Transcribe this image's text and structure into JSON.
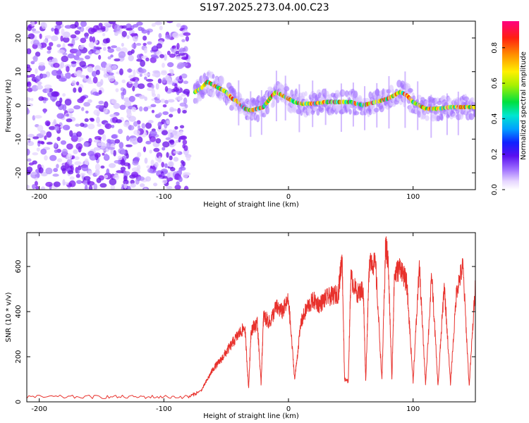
{
  "title": "S197.2025.273.04.00.C23",
  "colors": {
    "snr_line": "#e8312c",
    "frame": "#000000",
    "background": "#ffffff",
    "colormap": [
      "#ffffff",
      "#e6d6ff",
      "#a070ff",
      "#7a18f0",
      "#3018ff",
      "#00a0ff",
      "#00e6d0",
      "#00e040",
      "#a8f000",
      "#fff000",
      "#ff9000",
      "#ff2010",
      "#ff0080"
    ]
  },
  "chart_data": [
    {
      "type": "heatmap",
      "name": "spectrogram",
      "xlabel": "Height of straight line (km)",
      "ylabel": "Frequency (Hz)",
      "xlim": [
        -210,
        150
      ],
      "ylim": [
        -25,
        25
      ],
      "xticks": [
        -200,
        -100,
        0,
        100
      ],
      "yticks": [
        -20,
        -10,
        0,
        10,
        20
      ],
      "noise_region_x": [
        -210,
        -80
      ],
      "ridge": {
        "x": [
          -75,
          -70,
          -65,
          -60,
          -55,
          -50,
          -45,
          -40,
          -35,
          -30,
          -25,
          -20,
          -15,
          -10,
          -5,
          0,
          5,
          10,
          20,
          30,
          40,
          50,
          60,
          65,
          70,
          80,
          85,
          90,
          95,
          100,
          105,
          110,
          120,
          130,
          140,
          150
        ],
        "freq": [
          4,
          5,
          7,
          6,
          5,
          4,
          2,
          1,
          -1,
          -1.5,
          -1,
          -0.5,
          2,
          4,
          3,
          2,
          1,
          0.5,
          0.5,
          1,
          1,
          1,
          0,
          0.5,
          1,
          2,
          3,
          4,
          3,
          1,
          0,
          -1,
          -1,
          -0.5,
          -0.5,
          -0.5
        ]
      },
      "colorbar": {
        "label": "Normalized spectral amplitude",
        "range": [
          0.0,
          0.95
        ],
        "ticks": [
          "0.0",
          "0.2",
          "0.4",
          "0.6",
          "0.8"
        ],
        "tick_values": [
          0.0,
          0.2,
          0.4,
          0.6,
          0.8
        ]
      }
    },
    {
      "type": "line",
      "name": "snr",
      "xlabel": "Height of straight line (km)",
      "ylabel": "SNR (10 * v/v)",
      "xlim": [
        -210,
        150
      ],
      "ylim": [
        0,
        750
      ],
      "xticks": [
        -200,
        -100,
        0,
        100
      ],
      "yticks": [
        0,
        200,
        400,
        600
      ],
      "series": [
        {
          "name": "SNR",
          "x": [
            -210,
            -160,
            -120,
            -80,
            -70,
            -65,
            -60,
            -55,
            -50,
            -45,
            -40,
            -35,
            -32,
            -30,
            -25,
            -22,
            -20,
            -15,
            -10,
            -5,
            0,
            5,
            10,
            15,
            20,
            25,
            30,
            35,
            40,
            43,
            45,
            48,
            50,
            55,
            60,
            62,
            65,
            70,
            75,
            78,
            80,
            83,
            85,
            90,
            95,
            100,
            105,
            110,
            115,
            120,
            125,
            130,
            135,
            140,
            145,
            150
          ],
          "y": [
            22,
            22,
            22,
            22,
            50,
            100,
            150,
            180,
            220,
            260,
            300,
            330,
            60,
            320,
            350,
            80,
            380,
            350,
            420,
            400,
            450,
            100,
            350,
            420,
            450,
            430,
            460,
            470,
            480,
            650,
            100,
            90,
            550,
            480,
            500,
            90,
            640,
            600,
            95,
            700,
            620,
            100,
            560,
            600,
            520,
            90,
            600,
            80,
            560,
            70,
            520,
            80,
            500,
            600,
            70,
            520
          ]
        }
      ]
    }
  ]
}
